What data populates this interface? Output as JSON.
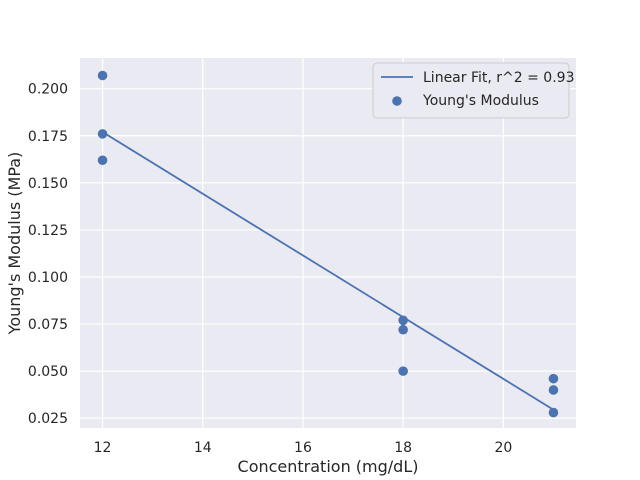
{
  "chart_data": {
    "type": "scatter",
    "title": "",
    "xlabel": "Concentration (mg/dL)",
    "ylabel": "Young's Modulus (MPa)",
    "xlim": [
      11.55,
      21.45
    ],
    "ylim": [
      0.0198,
      0.2163
    ],
    "xticks": [
      12,
      14,
      16,
      18,
      20
    ],
    "yticks": [
      0.025,
      0.05,
      0.075,
      0.1,
      0.125,
      0.15,
      0.175,
      0.2
    ],
    "xtick_labels": [
      "12",
      "14",
      "16",
      "18",
      "20"
    ],
    "ytick_labels": [
      "0.025",
      "0.050",
      "0.075",
      "0.100",
      "0.125",
      "0.150",
      "0.175",
      "0.200"
    ],
    "grid": true,
    "legend_position": "top-right",
    "series": [
      {
        "name": "Linear Fit, r^2 = 0.93",
        "kind": "line",
        "color": "#4c72b0",
        "x": [
          12,
          21
        ],
        "y": [
          0.177,
          0.0295
        ]
      },
      {
        "name": "Young's Modulus",
        "kind": "scatter",
        "color": "#4c72b0",
        "x": [
          12,
          12,
          12,
          18,
          18,
          18,
          21,
          21,
          21
        ],
        "y": [
          0.207,
          0.176,
          0.162,
          0.077,
          0.072,
          0.05,
          0.046,
          0.04,
          0.028
        ]
      }
    ]
  },
  "style": {
    "plot_background": "#eaeaf2",
    "grid_color": "#ffffff",
    "text_color": "#262626"
  }
}
